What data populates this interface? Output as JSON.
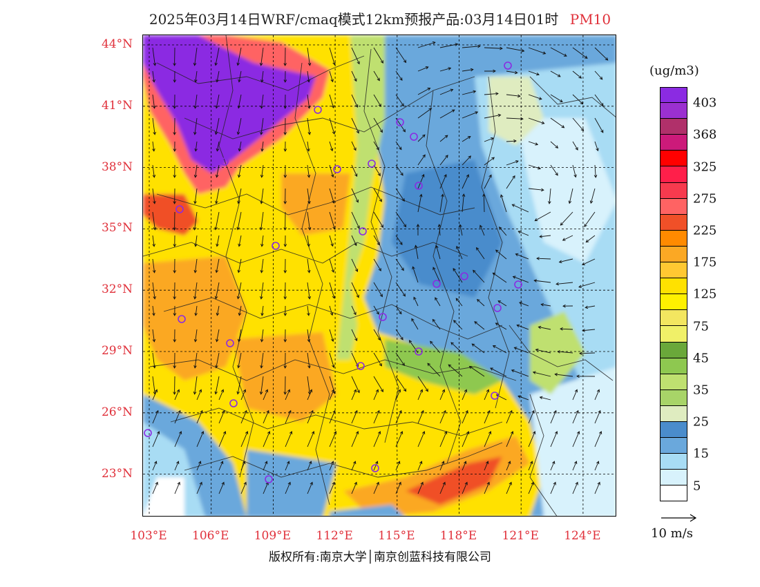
{
  "header": {
    "title": "2025年03月14日WRF/cmaq模式12km预报产品:03月14日01时",
    "pollutant": "PM10"
  },
  "map": {
    "latitude_labels": [
      {
        "label": "44°N",
        "lat": 44
      },
      {
        "label": "41°N",
        "lat": 41
      },
      {
        "label": "38°N",
        "lat": 38
      },
      {
        "label": "35°N",
        "lat": 35
      },
      {
        "label": "32°N",
        "lat": 32
      },
      {
        "label": "29°N",
        "lat": 29
      },
      {
        "label": "26°N",
        "lat": 26
      },
      {
        "label": "23°N",
        "lat": 23
      }
    ],
    "longitude_labels": [
      {
        "label": "103°E",
        "lon": 103
      },
      {
        "label": "106°E",
        "lon": 106
      },
      {
        "label": "109°E",
        "lon": 109
      },
      {
        "label": "112°E",
        "lon": 112
      },
      {
        "label": "115°E",
        "lon": 115
      },
      {
        "label": "118°E",
        "lon": 118
      },
      {
        "label": "121°E",
        "lon": 121
      },
      {
        "label": "124°E",
        "lon": 124
      }
    ],
    "station_color": "#8a2be2"
  },
  "legend": {
    "unit": "(ug/m3)",
    "colors": [
      "#8b2be2",
      "#9b30d0",
      "#b0306a",
      "#cc1a7a",
      "#ff0000",
      "#ff1f4a",
      "#f73a4e",
      "#ff6363",
      "#f05028",
      "#ff8a00",
      "#fba824",
      "#ffc832",
      "#ffe100",
      "#fff000",
      "#f3e660",
      "#f0f068",
      "#6aa83a",
      "#8ec850",
      "#bfe070",
      "#a8d468",
      "#dfecc0",
      "#4a8ccc",
      "#6aa8dc",
      "#a8dcf4",
      "#d8f2fc",
      "#ffffff"
    ],
    "labels": [
      {
        "text": "403",
        "index": 1
      },
      {
        "text": "368",
        "index": 3
      },
      {
        "text": "325",
        "index": 5
      },
      {
        "text": "275",
        "index": 7
      },
      {
        "text": "225",
        "index": 9
      },
      {
        "text": "175",
        "index": 11
      },
      {
        "text": "125",
        "index": 13
      },
      {
        "text": "75",
        "index": 15
      },
      {
        "text": "45",
        "index": 17
      },
      {
        "text": "35",
        "index": 19
      },
      {
        "text": "25",
        "index": 21
      },
      {
        "text": "15",
        "index": 23
      },
      {
        "text": "5",
        "index": 25
      }
    ]
  },
  "wind_reference": {
    "label": "10 m/s"
  },
  "footer": {
    "copyright": "版权所有:南京大学│南京创蓝科技有限公司"
  }
}
